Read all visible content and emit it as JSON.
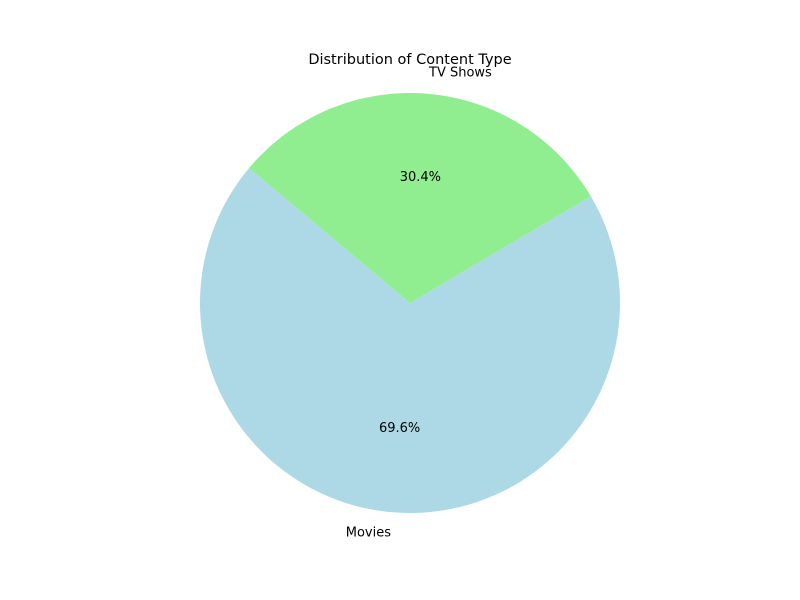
{
  "chart_data": {
    "type": "pie",
    "title": "Distribution of Content Type",
    "categories": [
      "Movies",
      "TV Shows"
    ],
    "values": [
      69.6,
      30.4
    ],
    "value_labels": [
      "69.6%",
      "30.4%"
    ],
    "colors": [
      "#add8e6",
      "#90ee90"
    ],
    "start_angle_deg": 140,
    "legend": "none"
  }
}
